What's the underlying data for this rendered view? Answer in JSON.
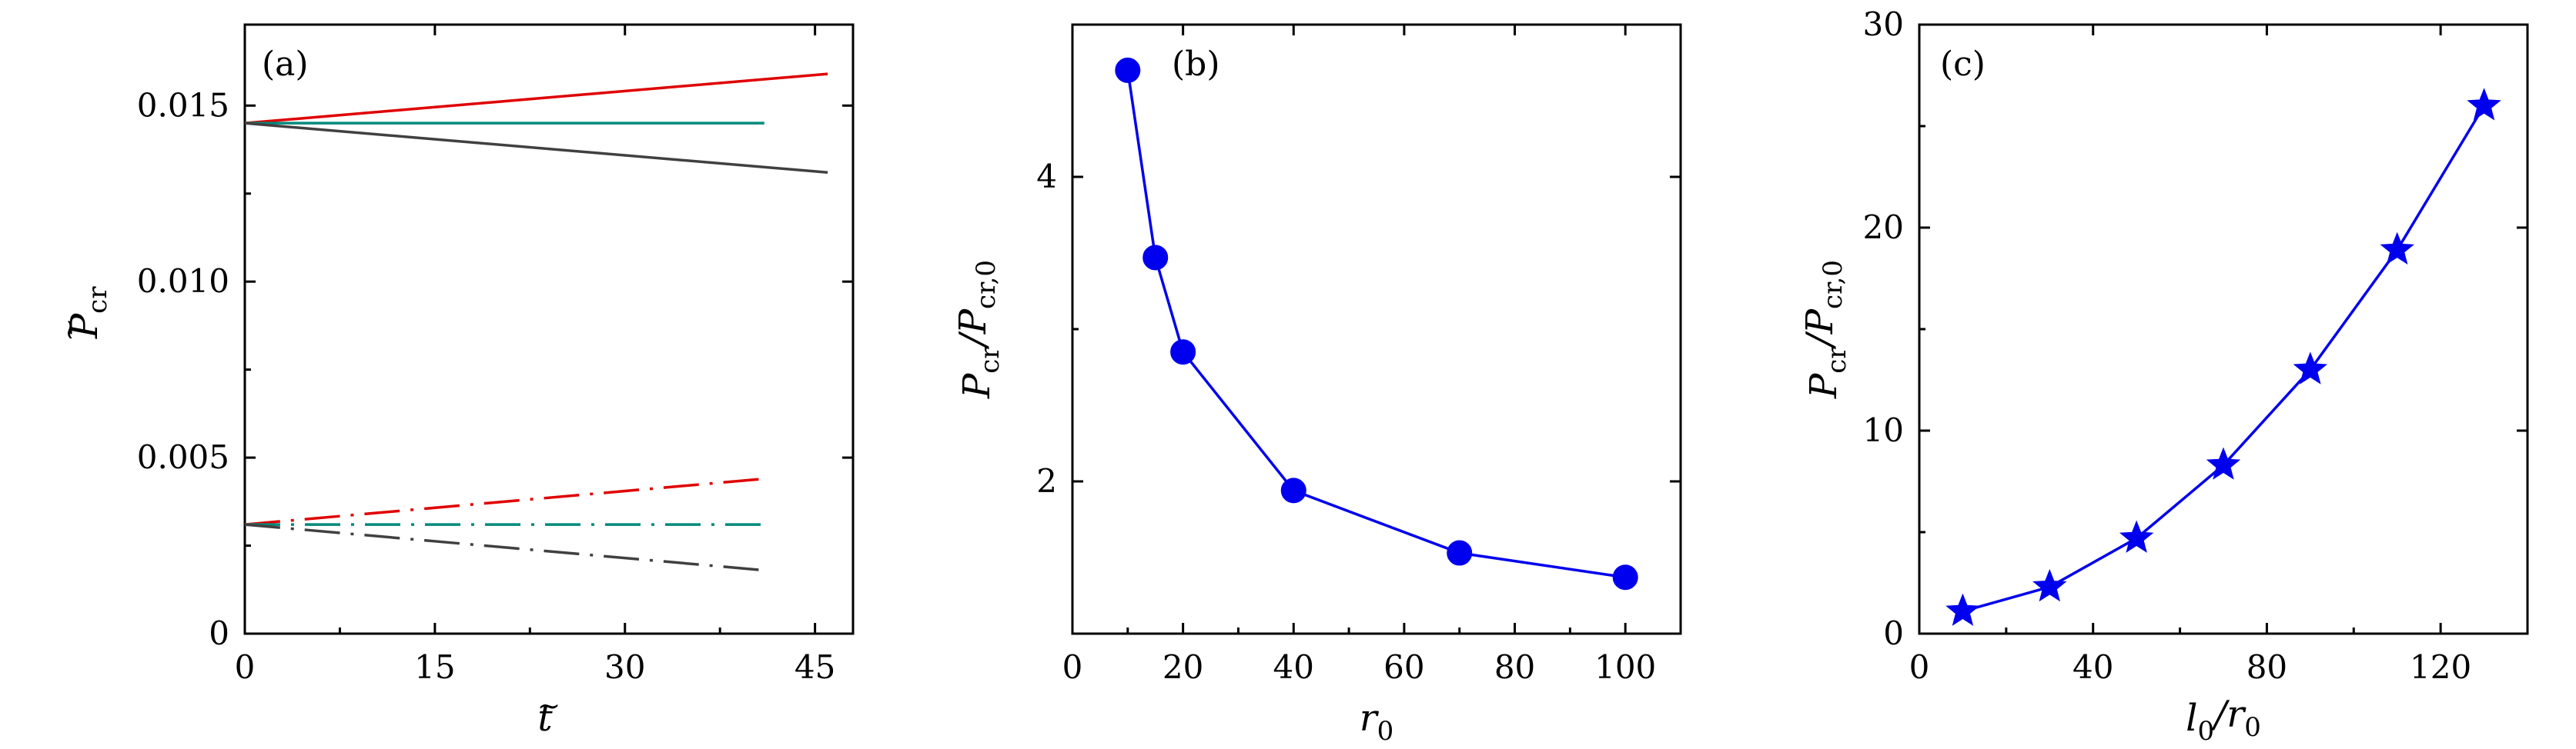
{
  "chart_data": [
    {
      "type": "line",
      "panel_label": "(a)",
      "xlabel": "t̃",
      "ylabel": "P̃cr",
      "xlim": [
        0,
        48
      ],
      "ylim": [
        0,
        0.0173
      ],
      "xticks": [
        0,
        15,
        30,
        45
      ],
      "xtick_labels": [
        "0",
        "15",
        "30",
        "45"
      ],
      "yticks": [
        0,
        0.005,
        0.01,
        0.015
      ],
      "ytick_labels": [
        "0",
        "0.005",
        "0.010",
        "0.015"
      ],
      "series": [
        {
          "color": "#e00000",
          "style": "solid",
          "x": [
            0,
            46
          ],
          "y": [
            0.0145,
            0.0159
          ]
        },
        {
          "color": "#00897b",
          "style": "solid",
          "x": [
            0,
            41
          ],
          "y": [
            0.0145,
            0.0145
          ]
        },
        {
          "color": "#404040",
          "style": "solid",
          "x": [
            0,
            46
          ],
          "y": [
            0.0145,
            0.0131
          ]
        },
        {
          "color": "#e00000",
          "style": "dashdot",
          "x": [
            0,
            41
          ],
          "y": [
            0.0031,
            0.0044
          ]
        },
        {
          "color": "#00897b",
          "style": "dashdot",
          "x": [
            0,
            41
          ],
          "y": [
            0.0031,
            0.0031
          ]
        },
        {
          "color": "#404040",
          "style": "dashdot",
          "x": [
            0,
            41
          ],
          "y": [
            0.0031,
            0.0018
          ]
        }
      ]
    },
    {
      "type": "line",
      "panel_label": "(b)",
      "xlabel": "r0",
      "ylabel": "P̃cr/P̃cr,0",
      "xlim": [
        0,
        110
      ],
      "ylim": [
        1,
        5
      ],
      "xticks": [
        0,
        20,
        40,
        60,
        80,
        100
      ],
      "xtick_labels": [
        "0",
        "20",
        "40",
        "60",
        "80",
        "100"
      ],
      "yticks": [
        2,
        4
      ],
      "ytick_labels": [
        "2",
        "4"
      ],
      "marker": "circle",
      "color": "#0000ee",
      "x": [
        10,
        15,
        20,
        40,
        70,
        100
      ],
      "y": [
        4.7,
        3.47,
        2.85,
        1.94,
        1.53,
        1.37
      ]
    },
    {
      "type": "line",
      "panel_label": "(c)",
      "xlabel": "l0/r0",
      "ylabel": "P̃cr/P̃cr,0",
      "xlim": [
        0,
        140
      ],
      "ylim": [
        0,
        30
      ],
      "xticks": [
        0,
        40,
        80,
        120
      ],
      "xtick_labels": [
        "0",
        "40",
        "80",
        "120"
      ],
      "yticks": [
        0,
        10,
        20,
        30
      ],
      "ytick_labels": [
        "0",
        "10",
        "20",
        "30"
      ],
      "marker": "star",
      "color": "#0000ee",
      "x": [
        10,
        30,
        50,
        70,
        90,
        110,
        130
      ],
      "y": [
        1.1,
        2.3,
        4.7,
        8.3,
        13.0,
        18.9,
        26.0
      ]
    }
  ]
}
